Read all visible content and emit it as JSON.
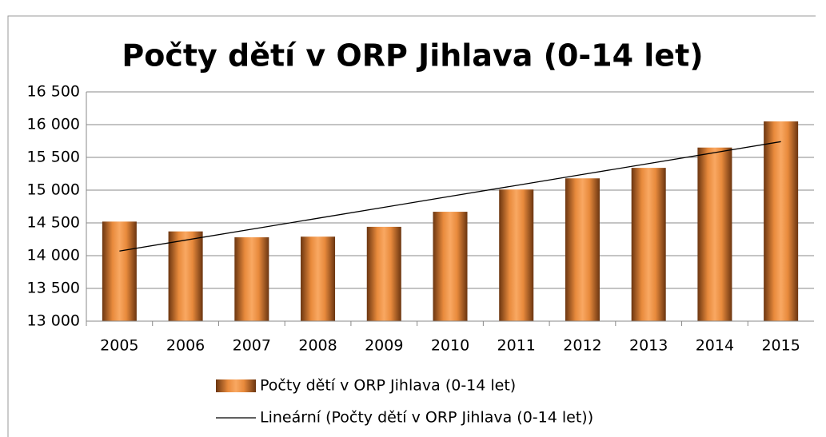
{
  "chart_data": {
    "type": "bar",
    "title": "Počty dětí v ORP Jihlava (0-14 let)",
    "categories": [
      "2005",
      "2006",
      "2007",
      "2008",
      "2009",
      "2010",
      "2011",
      "2012",
      "2013",
      "2014",
      "2015"
    ],
    "series": [
      {
        "name": "Počty dětí v ORP Jihlava (0-14 let)",
        "type": "bar",
        "color": "#f79646",
        "values": [
          14520,
          14370,
          14280,
          14290,
          14440,
          14670,
          15010,
          15180,
          15340,
          15650,
          16050
        ]
      },
      {
        "name": "Lineární (Počty dětí v ORP Jihlava (0-14 let))",
        "type": "line",
        "color": "#000000",
        "values": [
          14070,
          14237,
          14404,
          14571,
          14738,
          14905,
          15072,
          15239,
          15406,
          15573,
          15740
        ]
      }
    ],
    "ylim": [
      13000,
      16500
    ],
    "yticks": [
      {
        "value": 13000,
        "label": "13 000"
      },
      {
        "value": 13500,
        "label": "13 500"
      },
      {
        "value": 14000,
        "label": "14 000"
      },
      {
        "value": 14500,
        "label": "14 500"
      },
      {
        "value": 15000,
        "label": "15 000"
      },
      {
        "value": 15500,
        "label": "15 500"
      },
      {
        "value": 16000,
        "label": "16 000"
      },
      {
        "value": 16500,
        "label": "16 500"
      }
    ],
    "grid": true,
    "legend": "bottom"
  }
}
